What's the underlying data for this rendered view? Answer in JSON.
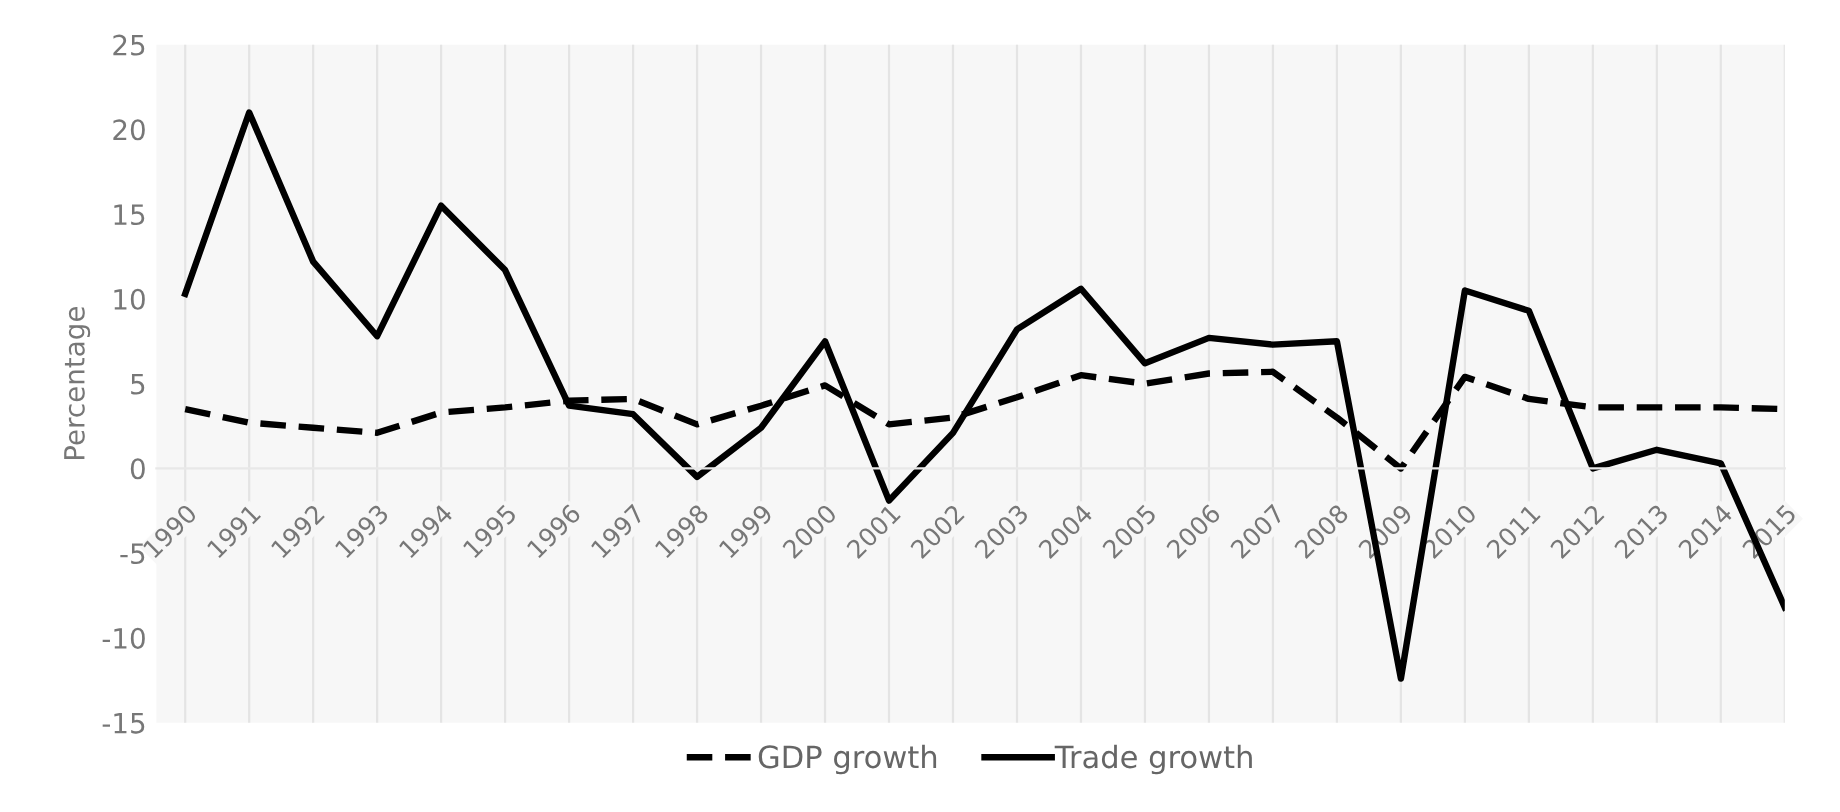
{
  "chart_data": {
    "type": "line",
    "ylabel": "Percentage",
    "categories": [
      "1990",
      "1991",
      "1992",
      "1993",
      "1994",
      "1995",
      "1996",
      "1997",
      "1998",
      "1999",
      "2000",
      "2001",
      "2002",
      "2003",
      "2004",
      "2005",
      "2006",
      "2007",
      "2008",
      "2009",
      "2010",
      "2011",
      "2012",
      "2013",
      "2014",
      "2015"
    ],
    "series": [
      {
        "name": "GDP growth",
        "color": "#000000",
        "line_style": "dashed",
        "values": [
          3.5,
          2.7,
          2.4,
          2.1,
          3.3,
          3.6,
          4.0,
          4.1,
          2.6,
          3.7,
          4.9,
          2.6,
          3.0,
          4.2,
          5.5,
          5.0,
          5.6,
          5.7,
          3.0,
          0.0,
          5.4,
          4.1,
          3.6,
          3.6,
          3.6,
          3.5
        ]
      },
      {
        "name": "Trade growth",
        "color": "#000000",
        "line_style": "solid",
        "values": [
          10.3,
          21.0,
          12.2,
          7.8,
          15.5,
          11.7,
          3.7,
          3.2,
          -0.5,
          2.4,
          7.5,
          -1.9,
          2.1,
          8.2,
          10.6,
          6.2,
          7.7,
          7.3,
          7.5,
          -12.4,
          10.5,
          9.3,
          0.0,
          1.1,
          0.3,
          -8.2
        ]
      }
    ],
    "ylim": [
      -15,
      25
    ],
    "yticks": [
      -15,
      -10,
      -5,
      0,
      5,
      10,
      15,
      20,
      25
    ],
    "grid": "x",
    "legend": "bottom",
    "marker": "none"
  }
}
